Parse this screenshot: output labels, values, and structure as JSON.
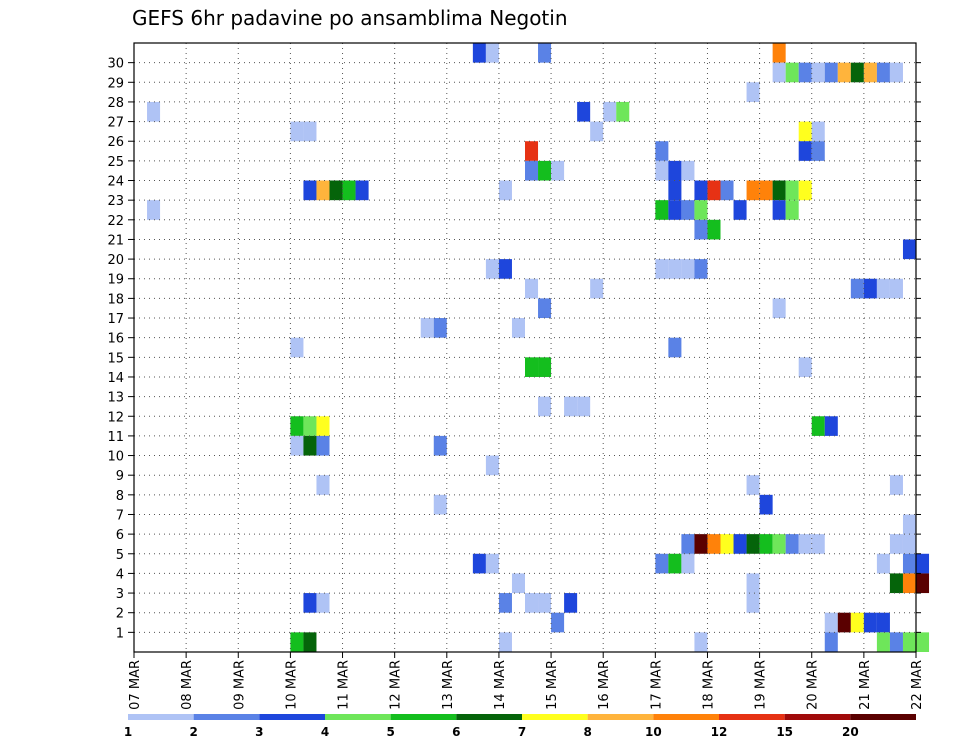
{
  "chart_data": {
    "type": "heatmap",
    "title": "GEFS 6hr padavine po ansamblima Negotin",
    "xlabel": "",
    "ylabel": "",
    "x_ticks": [
      "07 MAR",
      "08 MAR",
      "09 MAR",
      "10 MAR",
      "11 MAR",
      "12 MAR",
      "13 MAR",
      "14 MAR",
      "15 MAR",
      "16 MAR",
      "17 MAR",
      "18 MAR",
      "19 MAR",
      "20 MAR",
      "21 MAR",
      "22 MAR"
    ],
    "y_ticks": [
      "1",
      "2",
      "3",
      "4",
      "5",
      "6",
      "7",
      "8",
      "9",
      "10",
      "11",
      "12",
      "13",
      "14",
      "15",
      "16",
      "17",
      "18",
      "19",
      "20",
      "21",
      "22",
      "23",
      "24",
      "25",
      "26",
      "27",
      "28",
      "29",
      "30"
    ],
    "grid": true,
    "legend_position": "bottom",
    "color_scale": {
      "labels": [
        "1",
        "2",
        "3",
        "4",
        "5",
        "6",
        "7",
        "8",
        "10",
        "12",
        "15",
        "20"
      ],
      "colors": [
        "#afc3f5",
        "#5a82e6",
        "#1e46dc",
        "#6ee65a",
        "#14be1e",
        "#05640a",
        "#ffff1e",
        "#ffb43c",
        "#ff820a",
        "#e63214",
        "#a00a0a",
        "#5a0000"
      ]
    },
    "cells": [
      {
        "t": 0.25,
        "m": 27,
        "c": 0
      },
      {
        "t": 0.25,
        "m": 22,
        "c": 0
      },
      {
        "t": 3.0,
        "m": 26,
        "c": 0
      },
      {
        "t": 3.25,
        "m": 26,
        "c": 0
      },
      {
        "t": 3.25,
        "m": 23,
        "c": 2
      },
      {
        "t": 3.5,
        "m": 23,
        "c": 7
      },
      {
        "t": 3.75,
        "m": 23,
        "c": 5
      },
      {
        "t": 4.0,
        "m": 23,
        "c": 4
      },
      {
        "t": 4.25,
        "m": 23,
        "c": 2
      },
      {
        "t": 3.0,
        "m": 15,
        "c": 0
      },
      {
        "t": 3.0,
        "m": 11,
        "c": 4
      },
      {
        "t": 3.25,
        "m": 11,
        "c": 3
      },
      {
        "t": 3.5,
        "m": 11,
        "c": 6
      },
      {
        "t": 3.0,
        "m": 10,
        "c": 0
      },
      {
        "t": 3.25,
        "m": 10,
        "c": 5
      },
      {
        "t": 3.5,
        "m": 10,
        "c": 1
      },
      {
        "t": 3.5,
        "m": 8,
        "c": 0
      },
      {
        "t": 3.25,
        "m": 2,
        "c": 2
      },
      {
        "t": 3.5,
        "m": 2,
        "c": 0
      },
      {
        "t": 3.0,
        "m": 0,
        "c": 4
      },
      {
        "t": 3.25,
        "m": 0,
        "c": 5
      },
      {
        "t": 5.5,
        "m": 16,
        "c": 0
      },
      {
        "t": 5.75,
        "m": 16,
        "c": 1
      },
      {
        "t": 5.75,
        "m": 10,
        "c": 1
      },
      {
        "t": 5.75,
        "m": 7,
        "c": 0
      },
      {
        "t": 6.5,
        "m": 30,
        "c": 2
      },
      {
        "t": 6.75,
        "m": 30,
        "c": 0
      },
      {
        "t": 6.75,
        "m": 19,
        "c": 0
      },
      {
        "t": 7.0,
        "m": 19,
        "c": 2
      },
      {
        "t": 7.0,
        "m": 23,
        "c": 0
      },
      {
        "t": 6.75,
        "m": 9,
        "c": 0
      },
      {
        "t": 6.5,
        "m": 4,
        "c": 2
      },
      {
        "t": 6.75,
        "m": 4,
        "c": 0
      },
      {
        "t": 7.0,
        "m": 2,
        "c": 1
      },
      {
        "t": 7.0,
        "m": 0,
        "c": 0
      },
      {
        "t": 7.25,
        "m": 16,
        "c": 0
      },
      {
        "t": 7.25,
        "m": 3,
        "c": 0
      },
      {
        "t": 7.5,
        "m": 25,
        "c": 9
      },
      {
        "t": 7.5,
        "m": 24,
        "c": 1
      },
      {
        "t": 7.75,
        "m": 24,
        "c": 4
      },
      {
        "t": 8.0,
        "m": 24,
        "c": 0
      },
      {
        "t": 7.5,
        "m": 18,
        "c": 0
      },
      {
        "t": 7.75,
        "m": 17,
        "c": 1
      },
      {
        "t": 7.5,
        "m": 14,
        "c": 4
      },
      {
        "t": 7.75,
        "m": 14,
        "c": 4
      },
      {
        "t": 7.75,
        "m": 12,
        "c": 0
      },
      {
        "t": 7.5,
        "m": 2,
        "c": 0
      },
      {
        "t": 7.75,
        "m": 2,
        "c": 0
      },
      {
        "t": 8.25,
        "m": 12,
        "c": 0
      },
      {
        "t": 8.5,
        "m": 12,
        "c": 0
      },
      {
        "t": 8.0,
        "m": 1,
        "c": 1
      },
      {
        "t": 8.25,
        "m": 2,
        "c": 2
      },
      {
        "t": 7.75,
        "m": 30,
        "c": 1
      },
      {
        "t": 8.5,
        "m": 27,
        "c": 2
      },
      {
        "t": 8.75,
        "m": 26,
        "c": 0
      },
      {
        "t": 9.0,
        "m": 27,
        "c": 0
      },
      {
        "t": 9.25,
        "m": 27,
        "c": 3
      },
      {
        "t": 8.75,
        "m": 18,
        "c": 0
      },
      {
        "t": 10.0,
        "m": 25,
        "c": 1
      },
      {
        "t": 10.0,
        "m": 24,
        "c": 0
      },
      {
        "t": 10.25,
        "m": 24,
        "c": 2
      },
      {
        "t": 10.5,
        "m": 24,
        "c": 0
      },
      {
        "t": 10.25,
        "m": 23,
        "c": 2
      },
      {
        "t": 10.75,
        "m": 23,
        "c": 2
      },
      {
        "t": 11.0,
        "m": 23,
        "c": 9
      },
      {
        "t": 11.25,
        "m": 23,
        "c": 1
      },
      {
        "t": 10.0,
        "m": 22,
        "c": 4
      },
      {
        "t": 10.25,
        "m": 22,
        "c": 2
      },
      {
        "t": 10.5,
        "m": 22,
        "c": 1
      },
      {
        "t": 10.75,
        "m": 22,
        "c": 3
      },
      {
        "t": 10.75,
        "m": 21,
        "c": 1
      },
      {
        "t": 11.0,
        "m": 21,
        "c": 4
      },
      {
        "t": 11.5,
        "m": 22,
        "c": 2
      },
      {
        "t": 10.0,
        "m": 19,
        "c": 0
      },
      {
        "t": 10.25,
        "m": 19,
        "c": 0
      },
      {
        "t": 10.5,
        "m": 19,
        "c": 0
      },
      {
        "t": 10.75,
        "m": 19,
        "c": 1
      },
      {
        "t": 10.25,
        "m": 15,
        "c": 1
      },
      {
        "t": 10.0,
        "m": 4,
        "c": 1
      },
      {
        "t": 10.25,
        "m": 4,
        "c": 4
      },
      {
        "t": 10.5,
        "m": 4,
        "c": 0
      },
      {
        "t": 10.5,
        "m": 5,
        "c": 1
      },
      {
        "t": 10.75,
        "m": 5,
        "c": 11
      },
      {
        "t": 11.0,
        "m": 5,
        "c": 8
      },
      {
        "t": 11.25,
        "m": 5,
        "c": 6
      },
      {
        "t": 11.5,
        "m": 5,
        "c": 2
      },
      {
        "t": 11.75,
        "m": 5,
        "c": 5
      },
      {
        "t": 12.0,
        "m": 5,
        "c": 4
      },
      {
        "t": 12.25,
        "m": 5,
        "c": 3
      },
      {
        "t": 12.5,
        "m": 5,
        "c": 1
      },
      {
        "t": 12.75,
        "m": 5,
        "c": 0
      },
      {
        "t": 13.0,
        "m": 5,
        "c": 0
      },
      {
        "t": 10.75,
        "m": 0,
        "c": 0
      },
      {
        "t": 11.75,
        "m": 28,
        "c": 0
      },
      {
        "t": 11.75,
        "m": 23,
        "c": 8
      },
      {
        "t": 12.0,
        "m": 23,
        "c": 8
      },
      {
        "t": 12.25,
        "m": 23,
        "c": 5
      },
      {
        "t": 12.5,
        "m": 23,
        "c": 3
      },
      {
        "t": 12.75,
        "m": 23,
        "c": 6
      },
      {
        "t": 12.25,
        "m": 22,
        "c": 2
      },
      {
        "t": 12.5,
        "m": 22,
        "c": 3
      },
      {
        "t": 11.75,
        "m": 3,
        "c": 0
      },
      {
        "t": 11.75,
        "m": 2,
        "c": 0
      },
      {
        "t": 11.75,
        "m": 8,
        "c": 0
      },
      {
        "t": 12.0,
        "m": 7,
        "c": 2
      },
      {
        "t": 12.25,
        "m": 30,
        "c": 8
      },
      {
        "t": 12.25,
        "m": 29,
        "c": 0
      },
      {
        "t": 12.5,
        "m": 29,
        "c": 3
      },
      {
        "t": 12.75,
        "m": 29,
        "c": 1
      },
      {
        "t": 13.0,
        "m": 29,
        "c": 0
      },
      {
        "t": 13.25,
        "m": 29,
        "c": 1
      },
      {
        "t": 13.5,
        "m": 29,
        "c": 7
      },
      {
        "t": 13.75,
        "m": 29,
        "c": 5
      },
      {
        "t": 14.0,
        "m": 29,
        "c": 7
      },
      {
        "t": 14.25,
        "m": 29,
        "c": 1
      },
      {
        "t": 14.5,
        "m": 29,
        "c": 0
      },
      {
        "t": 12.75,
        "m": 26,
        "c": 6
      },
      {
        "t": 13.0,
        "m": 26,
        "c": 0
      },
      {
        "t": 12.75,
        "m": 25,
        "c": 2
      },
      {
        "t": 13.0,
        "m": 25,
        "c": 1
      },
      {
        "t": 12.25,
        "m": 17,
        "c": 0
      },
      {
        "t": 12.75,
        "m": 14,
        "c": 0
      },
      {
        "t": 13.0,
        "m": 11,
        "c": 4
      },
      {
        "t": 13.25,
        "m": 11,
        "c": 2
      },
      {
        "t": 13.75,
        "m": 18,
        "c": 1
      },
      {
        "t": 14.0,
        "m": 18,
        "c": 2
      },
      {
        "t": 14.25,
        "m": 18,
        "c": 0
      },
      {
        "t": 14.5,
        "m": 18,
        "c": 0
      },
      {
        "t": 14.75,
        "m": 20,
        "c": 2
      },
      {
        "t": 14.5,
        "m": 8,
        "c": 0
      },
      {
        "t": 14.75,
        "m": 6,
        "c": 0
      },
      {
        "t": 14.5,
        "m": 5,
        "c": 0
      },
      {
        "t": 14.75,
        "m": 5,
        "c": 0
      },
      {
        "t": 14.25,
        "m": 4,
        "c": 0
      },
      {
        "t": 14.75,
        "m": 4,
        "c": 1
      },
      {
        "t": 15.0,
        "m": 4,
        "c": 2
      },
      {
        "t": 14.5,
        "m": 3,
        "c": 5
      },
      {
        "t": 14.75,
        "m": 3,
        "c": 8
      },
      {
        "t": 15.0,
        "m": 3,
        "c": 11
      },
      {
        "t": 13.25,
        "m": 1,
        "c": 0
      },
      {
        "t": 13.5,
        "m": 1,
        "c": 11
      },
      {
        "t": 13.75,
        "m": 1,
        "c": 6
      },
      {
        "t": 14.0,
        "m": 1,
        "c": 2
      },
      {
        "t": 14.25,
        "m": 1,
        "c": 2
      },
      {
        "t": 13.25,
        "m": 0,
        "c": 1
      },
      {
        "t": 14.25,
        "m": 0,
        "c": 3
      },
      {
        "t": 14.5,
        "m": 0,
        "c": 1
      },
      {
        "t": 14.75,
        "m": 0,
        "c": 3
      },
      {
        "t": 15.0,
        "m": 0,
        "c": 3
      }
    ]
  }
}
